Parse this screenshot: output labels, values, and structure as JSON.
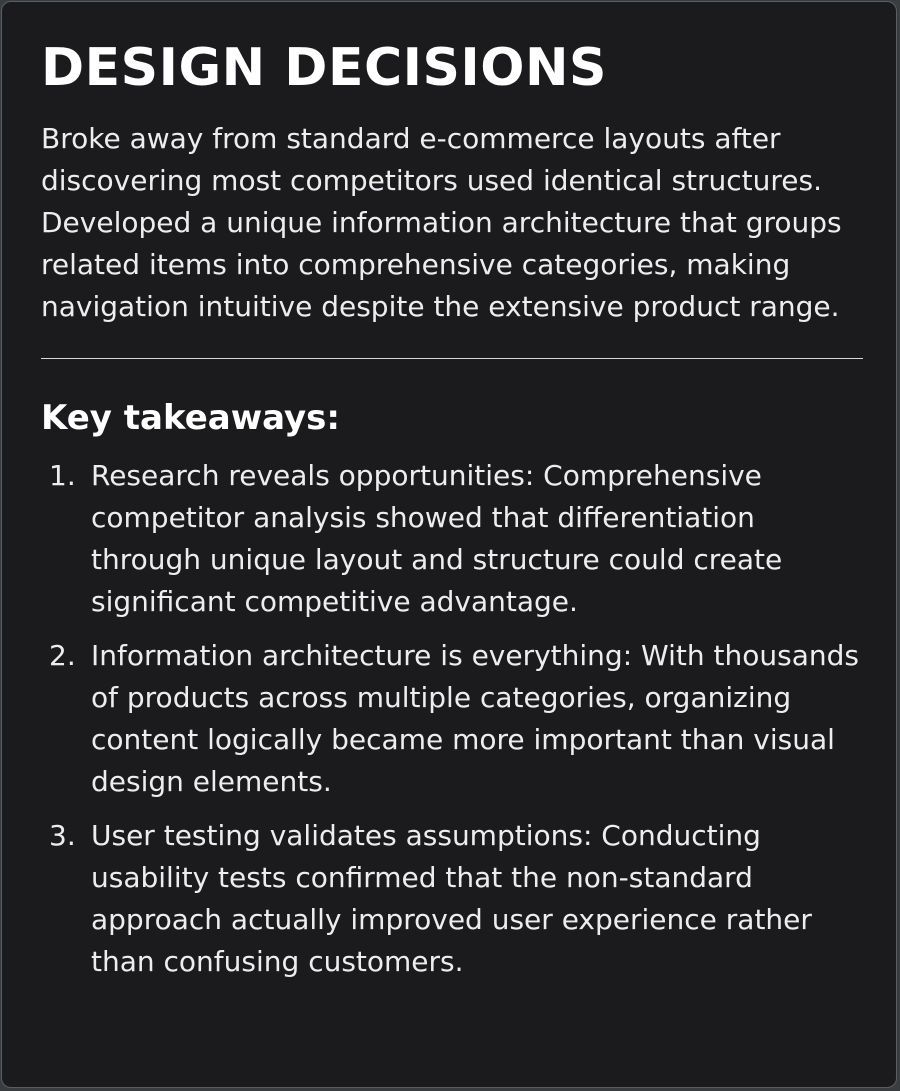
{
  "card": {
    "title": "DESIGN DECISIONS",
    "intro": "Broke away from standard e-commerce layouts after discovering most competitors used identical structures. Developed a unique information architecture that groups related items into comprehensive categories, making navigation intuitive despite the extensive product range.",
    "subheading": "Key takeaways:",
    "takeaways": [
      {
        "number": "1.",
        "text": "Research reveals opportunities: Comprehensive competitor analysis showed that differentiation through unique layout and structure could create significant competitive advantage."
      },
      {
        "number": "2.",
        "text": "Information architecture is everything: With thousands of products across multiple categories, organizing content logically became more important than visual design elements."
      },
      {
        "number": "3.",
        "text": "User testing validates assumptions: Conducting usability tests confirmed that the non-standard approach actually improved user experience rather than confusing customers."
      }
    ]
  },
  "colors": {
    "background": "#1b1b1d",
    "text": "#ededed",
    "heading": "#ffffff",
    "border": "#5a5e62"
  }
}
